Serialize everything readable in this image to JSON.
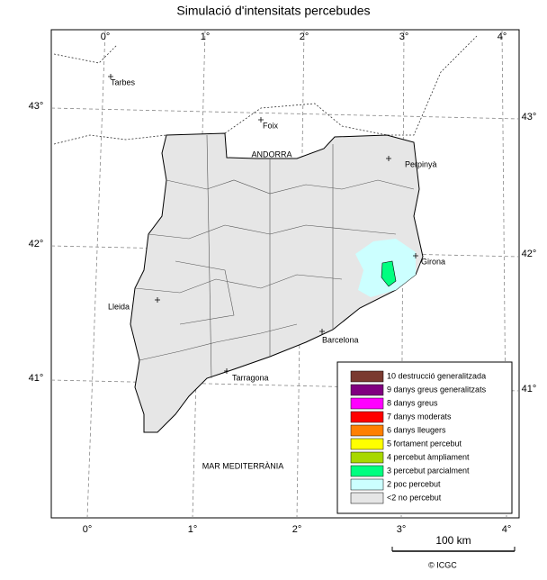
{
  "header": {
    "title": "Simulació d'intensitats percebudes"
  },
  "graticule": {
    "top_labels": [
      "0°",
      "1°",
      "2°",
      "3°",
      "4°"
    ],
    "bottom_labels": [
      "0°",
      "1°",
      "2°",
      "3°",
      "4°"
    ],
    "left_labels": [
      "43°",
      "42°",
      "41°"
    ],
    "right_labels": [
      "43°",
      "42°",
      "41°"
    ]
  },
  "places": [
    {
      "label": "Tarbes"
    },
    {
      "label": "Foix"
    },
    {
      "label": "ANDORRA"
    },
    {
      "label": "Perpinyà"
    },
    {
      "label": "Girona"
    },
    {
      "label": "Lleida"
    },
    {
      "label": "Barcelona"
    },
    {
      "label": "Tarragona"
    },
    {
      "label": "MAR MEDITERRÀNIA"
    }
  ],
  "legend": {
    "items": [
      {
        "label": "10 destrucció generalitzada",
        "color": "#7a3a30"
      },
      {
        "label": "9 danys greus generalitzats",
        "color": "#800080"
      },
      {
        "label": "8 danys greus",
        "color": "#ff00ff"
      },
      {
        "label": "7 danys moderats",
        "color": "#ff0000"
      },
      {
        "label": "6 danys lleugers",
        "color": "#ff8000"
      },
      {
        "label": "5 fortament percebut",
        "color": "#ffff00"
      },
      {
        "label": "4 percebut àmpliament",
        "color": "#a8d800"
      },
      {
        "label": "3 percebut parcialment",
        "color": "#00ff80"
      },
      {
        "label": "2 poc percebut",
        "color": "#ccffff"
      },
      {
        "label": "<2 no percebut",
        "color": "#e6e6e6"
      }
    ]
  },
  "scale": {
    "label": "100 km"
  },
  "credit": "© ICGC"
}
